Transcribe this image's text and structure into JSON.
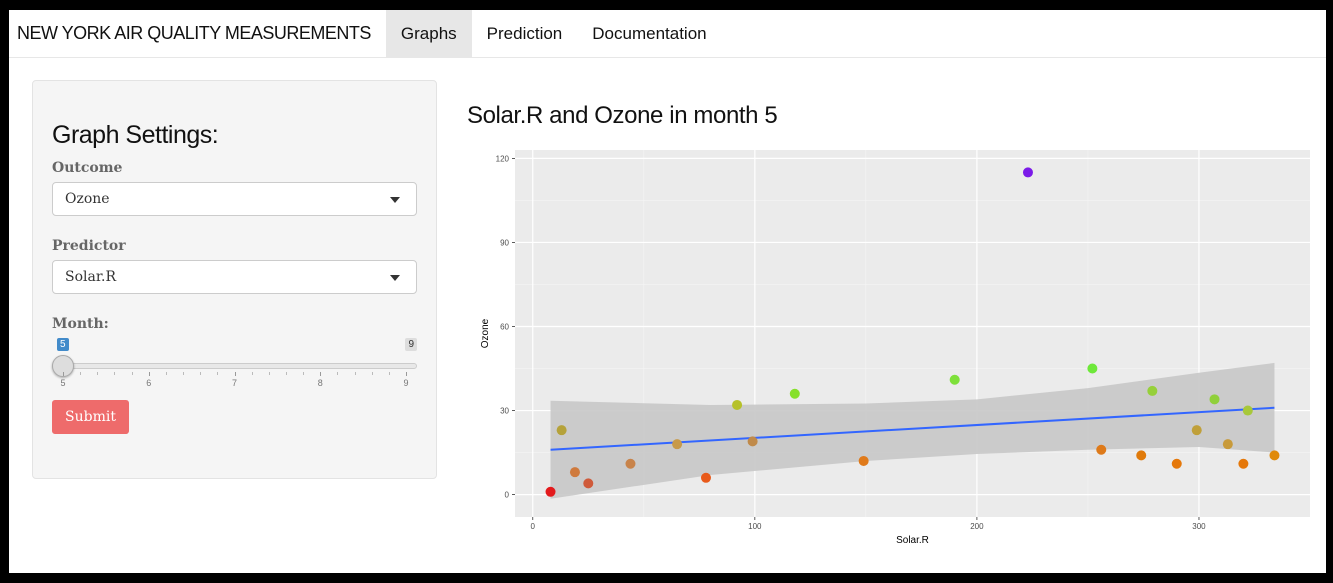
{
  "navbar": {
    "brand": "NEW YORK AIR QUALITY MEASUREMENTS",
    "tabs": [
      {
        "label": "Graphs",
        "active": true
      },
      {
        "label": "Prediction",
        "active": false
      },
      {
        "label": "Documentation",
        "active": false
      }
    ]
  },
  "sidebar": {
    "title": "Graph Settings:",
    "outcome_label": "Outcome",
    "outcome_value": "Ozone",
    "predictor_label": "Predictor",
    "predictor_value": "Solar.R",
    "month_label": "Month:",
    "month_min": "5",
    "month_max": "9",
    "month_value": 5,
    "month_ticks": [
      "5",
      "6",
      "7",
      "8",
      "9"
    ],
    "submit_label": "Submit"
  },
  "main": {
    "title": "Solar.R and Ozone in month 5"
  },
  "chart_data": {
    "type": "scatter",
    "xlabel": "Solar.R",
    "ylabel": "Ozone",
    "xlim": [
      -8,
      350
    ],
    "ylim": [
      -8,
      123
    ],
    "x_ticks": [
      0,
      100,
      200,
      300
    ],
    "y_ticks": [
      0,
      30,
      60,
      90,
      120
    ],
    "grid": true,
    "points": [
      {
        "x": 8,
        "y": 1,
        "color": "#e31a1c"
      },
      {
        "x": 13,
        "y": 23,
        "color": "#b5a23a"
      },
      {
        "x": 19,
        "y": 8,
        "color": "#cf7a3d"
      },
      {
        "x": 25,
        "y": 4,
        "color": "#cf5a3a"
      },
      {
        "x": 44,
        "y": 11,
        "color": "#c8834a"
      },
      {
        "x": 65,
        "y": 18,
        "color": "#c89a4a"
      },
      {
        "x": 78,
        "y": 6,
        "color": "#e85a1a"
      },
      {
        "x": 92,
        "y": 32,
        "color": "#b6c12a"
      },
      {
        "x": 99,
        "y": 19,
        "color": "#c08a4a"
      },
      {
        "x": 118,
        "y": 36,
        "color": "#86e02a"
      },
      {
        "x": 149,
        "y": 12,
        "color": "#e07a1a"
      },
      {
        "x": 190,
        "y": 41,
        "color": "#7ee03a"
      },
      {
        "x": 223,
        "y": 115,
        "color": "#7b1ae8"
      },
      {
        "x": 252,
        "y": 45,
        "color": "#6ee83a"
      },
      {
        "x": 256,
        "y": 16,
        "color": "#de7a1a"
      },
      {
        "x": 274,
        "y": 14,
        "color": "#e07a0a"
      },
      {
        "x": 279,
        "y": 37,
        "color": "#96d03a"
      },
      {
        "x": 290,
        "y": 11,
        "color": "#e5780a"
      },
      {
        "x": 299,
        "y": 23,
        "color": "#c0a03a"
      },
      {
        "x": 307,
        "y": 34,
        "color": "#90d03a"
      },
      {
        "x": 313,
        "y": 18,
        "color": "#c89a3a"
      },
      {
        "x": 320,
        "y": 11,
        "color": "#e5780a"
      },
      {
        "x": 322,
        "y": 30,
        "color": "#a8c83a"
      },
      {
        "x": 334,
        "y": 14,
        "color": "#e08a0a"
      }
    ],
    "fit_line": {
      "x": [
        8,
        334
      ],
      "y": [
        16,
        31
      ],
      "color": "#3366ff"
    },
    "confidence_band": {
      "upper": [
        [
          8,
          33.5
        ],
        [
          80,
          32
        ],
        [
          150,
          32.5
        ],
        [
          200,
          34
        ],
        [
          250,
          38
        ],
        [
          300,
          43.5
        ],
        [
          334,
          47
        ]
      ],
      "lower": [
        [
          8,
          -1.5
        ],
        [
          80,
          7
        ],
        [
          150,
          12
        ],
        [
          200,
          14.5
        ],
        [
          250,
          16
        ],
        [
          300,
          17
        ],
        [
          334,
          15
        ]
      ],
      "color": "#c8c8c8"
    },
    "panel_color": "#ebebeb"
  }
}
